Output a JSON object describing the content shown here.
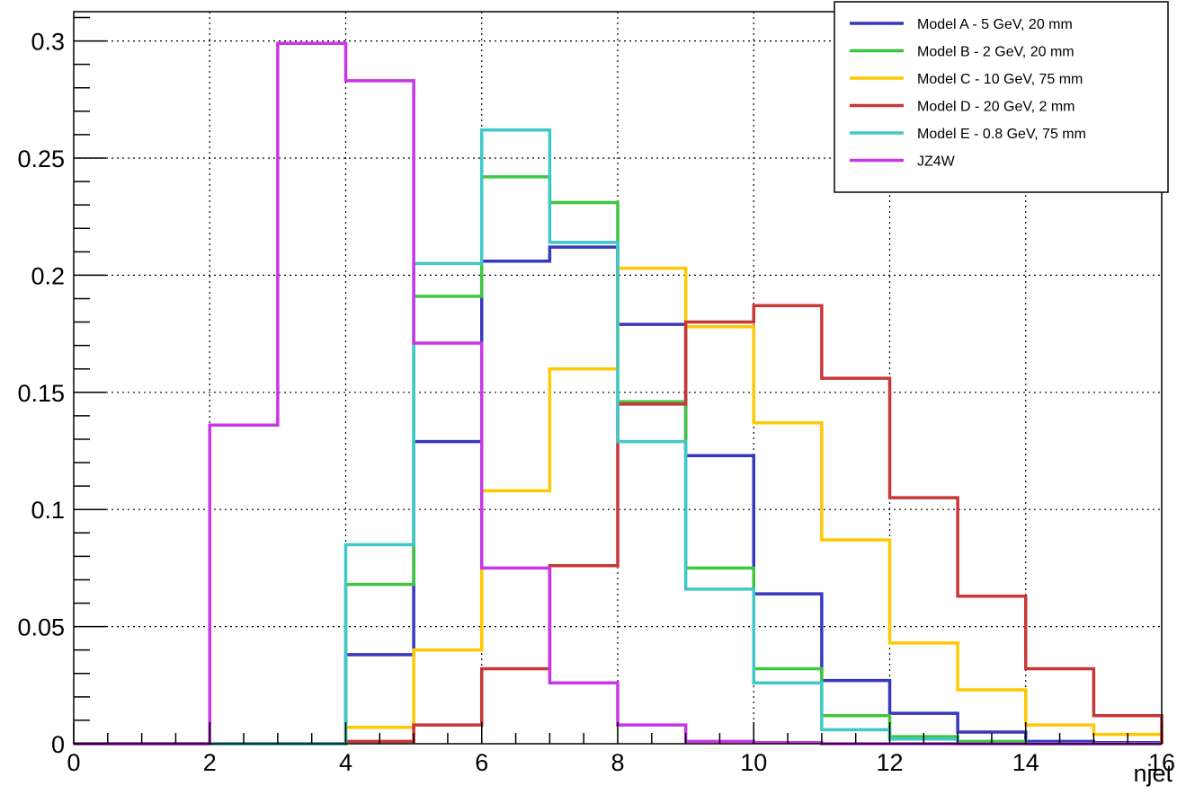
{
  "chart_data": {
    "type": "step-histogram",
    "title": "",
    "xlabel": "njet",
    "ylabel": "",
    "xlim": [
      0,
      16
    ],
    "ylim": [
      0,
      0.3125
    ],
    "x_ticks": [
      0,
      2,
      4,
      6,
      8,
      10,
      12,
      14,
      16
    ],
    "y_ticks": [
      0,
      0.05,
      0.1,
      0.15,
      0.2,
      0.25,
      0.3
    ],
    "y_tick_labels": [
      "0",
      "0.05",
      "0.1",
      "0.15",
      "0.2",
      "0.25",
      "0.3"
    ],
    "grid": true,
    "legend_position": "top-right",
    "bin_edges": [
      0,
      1,
      2,
      3,
      4,
      5,
      6,
      7,
      8,
      9,
      10,
      11,
      12,
      13,
      14,
      15,
      16
    ],
    "series": [
      {
        "name": "Model A - 5 GeV, 20 mm",
        "color": "#3737c1",
        "values": [
          0,
          0,
          0,
          0,
          0.038,
          0.129,
          0.206,
          0.212,
          0.179,
          0.123,
          0.064,
          0.027,
          0.013,
          0.005,
          0.001,
          0.0005
        ]
      },
      {
        "name": "Model B - 2 GeV, 20 mm",
        "color": "#3fc63f",
        "values": [
          0,
          0,
          0,
          0,
          0.068,
          0.191,
          0.242,
          0.231,
          0.146,
          0.075,
          0.032,
          0.012,
          0.003,
          0.001,
          0,
          0
        ]
      },
      {
        "name": "Model C - 10 GeV, 75 mm",
        "color": "#ffc800",
        "values": [
          0,
          0,
          0,
          0,
          0.007,
          0.04,
          0.108,
          0.16,
          0.203,
          0.178,
          0.137,
          0.087,
          0.043,
          0.023,
          0.008,
          0.004
        ]
      },
      {
        "name": "Model D - 20 GeV, 2 mm",
        "color": "#c83737",
        "values": [
          0,
          0,
          0,
          0,
          0.001,
          0.008,
          0.032,
          0.076,
          0.145,
          0.18,
          0.187,
          0.156,
          0.105,
          0.063,
          0.032,
          0.012
        ]
      },
      {
        "name": "Model E - 0.8 GeV, 75 mm",
        "color": "#40c8c8",
        "values": [
          0,
          0,
          0,
          0,
          0.085,
          0.205,
          0.262,
          0.214,
          0.129,
          0.066,
          0.026,
          0.006,
          0.002,
          0,
          0,
          0
        ]
      },
      {
        "name": "JZ4W",
        "color": "#c837e6",
        "values": [
          0,
          0,
          0.136,
          0.299,
          0.283,
          0.171,
          0.075,
          0.026,
          0.008,
          0.001,
          0.0005,
          0,
          0,
          0,
          0,
          0
        ]
      }
    ]
  }
}
